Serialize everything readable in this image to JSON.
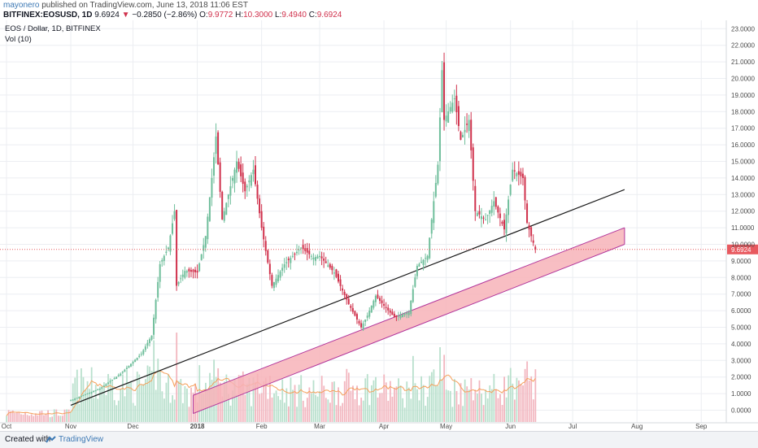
{
  "header": {
    "author": "mayonero",
    "published": "published on TradingView.com, June 13, 2018 11:06 EST",
    "symbol": "BITFINEX:EOSUSD, 1D",
    "last": "9.6924",
    "arrow": "▼",
    "change": "−0.2850 (−2.86%)",
    "o_label": "O:",
    "o_value": "9.9772",
    "h_label": "H:",
    "h_value": "10.3000",
    "l_label": "L:",
    "l_value": "9.4940",
    "c_label": "C:",
    "c_value": "9.6924"
  },
  "legend": {
    "title": "EOS / Dollar, 1D, BITFINEX",
    "volume": "Vol (10)"
  },
  "footer": {
    "created_with": "Created with",
    "brand": "TradingView"
  },
  "colors": {
    "up": "#6fbe9b",
    "down": "#d0314c",
    "channel_fill": "#f7b3b8",
    "channel_edge": "#b2359b",
    "trendline": "#1a1a1a",
    "price_line": "#e8595f",
    "vol_ma": "#f5a05a",
    "grid": "#eceef2"
  },
  "chart_data": {
    "type": "candlestick",
    "title": "EOS / Dollar, 1D, BITFINEX",
    "yaxis_ticks": [
      "0.0000",
      "1.0000",
      "2.0000",
      "3.0000",
      "4.0000",
      "5.0000",
      "6.0000",
      "7.0000",
      "8.0000",
      "9.0000",
      "10.0000",
      "11.0000",
      "12.0000",
      "13.0000",
      "14.0000",
      "15.0000",
      "16.0000",
      "17.0000",
      "18.0000",
      "19.0000",
      "20.0000",
      "21.0000",
      "22.0000",
      "23.0000"
    ],
    "ylim": [
      -1.3,
      23.8
    ],
    "xaxis_ticks": [
      "Oct",
      "Nov",
      "Dec",
      "2018",
      "Feb",
      "Mar",
      "Apr",
      "May",
      "Jun",
      "Jul",
      "Aug",
      "Sep"
    ],
    "last_price_label": "9.6924",
    "last_price": 9.6924,
    "price_anchors": [
      [
        "2017-10-01",
        0.9
      ],
      [
        "2017-10-20",
        0.6
      ],
      [
        "2017-11-01",
        0.6
      ],
      [
        "2017-11-15",
        1.3
      ],
      [
        "2017-11-25",
        2.2
      ],
      [
        "2017-12-05",
        3.4
      ],
      [
        "2017-12-10",
        4.5
      ],
      [
        "2017-12-14",
        8.8
      ],
      [
        "2017-12-18",
        9.8
      ],
      [
        "2017-12-21",
        12.0
      ],
      [
        "2017-12-22",
        7.5
      ],
      [
        "2017-12-26",
        8.4
      ],
      [
        "2018-01-01",
        8.3
      ],
      [
        "2018-01-05",
        10.5
      ],
      [
        "2018-01-08",
        14.0
      ],
      [
        "2018-01-10",
        16.5
      ],
      [
        "2018-01-13",
        11.5
      ],
      [
        "2018-01-20",
        15.0
      ],
      [
        "2018-01-24",
        13.2
      ],
      [
        "2018-01-28",
        14.5
      ],
      [
        "2018-02-01",
        11.0
      ],
      [
        "2018-02-06",
        7.5
      ],
      [
        "2018-02-12",
        8.8
      ],
      [
        "2018-02-20",
        9.8
      ],
      [
        "2018-02-26",
        9.2
      ],
      [
        "2018-03-01",
        9.3
      ],
      [
        "2018-03-08",
        8.3
      ],
      [
        "2018-03-15",
        6.4
      ],
      [
        "2018-03-21",
        5.0
      ],
      [
        "2018-03-24",
        5.7
      ],
      [
        "2018-03-28",
        6.9
      ],
      [
        "2018-04-01",
        6.3
      ],
      [
        "2018-04-06",
        5.6
      ],
      [
        "2018-04-13",
        5.9
      ],
      [
        "2018-04-17",
        8.7
      ],
      [
        "2018-04-22",
        9.3
      ],
      [
        "2018-04-25",
        12.6
      ],
      [
        "2018-04-27",
        14.8
      ],
      [
        "2018-04-29",
        20.5
      ],
      [
        "2018-04-30",
        17.5
      ],
      [
        "2018-05-05",
        18.8
      ],
      [
        "2018-05-08",
        16.3
      ],
      [
        "2018-05-12",
        17.5
      ],
      [
        "2018-05-15",
        12.0
      ],
      [
        "2018-05-20",
        11.5
      ],
      [
        "2018-05-24",
        12.6
      ],
      [
        "2018-05-29",
        10.9
      ],
      [
        "2018-06-02",
        14.5
      ],
      [
        "2018-06-07",
        14.0
      ],
      [
        "2018-06-09",
        11.3
      ],
      [
        "2018-06-13",
        9.6924
      ]
    ],
    "volume_scale": "relative 0-1",
    "trendline": {
      "start": [
        "2017-11-01",
        0.3
      ],
      "end": [
        "2018-07-26",
        13.3
      ]
    },
    "channel": {
      "upper": {
        "start": [
          "2017-12-30",
          0.9
        ],
        "end": [
          "2018-07-26",
          11.0
        ]
      },
      "lower": {
        "start": [
          "2017-12-30",
          -0.2
        ],
        "end": [
          "2018-07-26",
          10.0
        ]
      }
    }
  }
}
